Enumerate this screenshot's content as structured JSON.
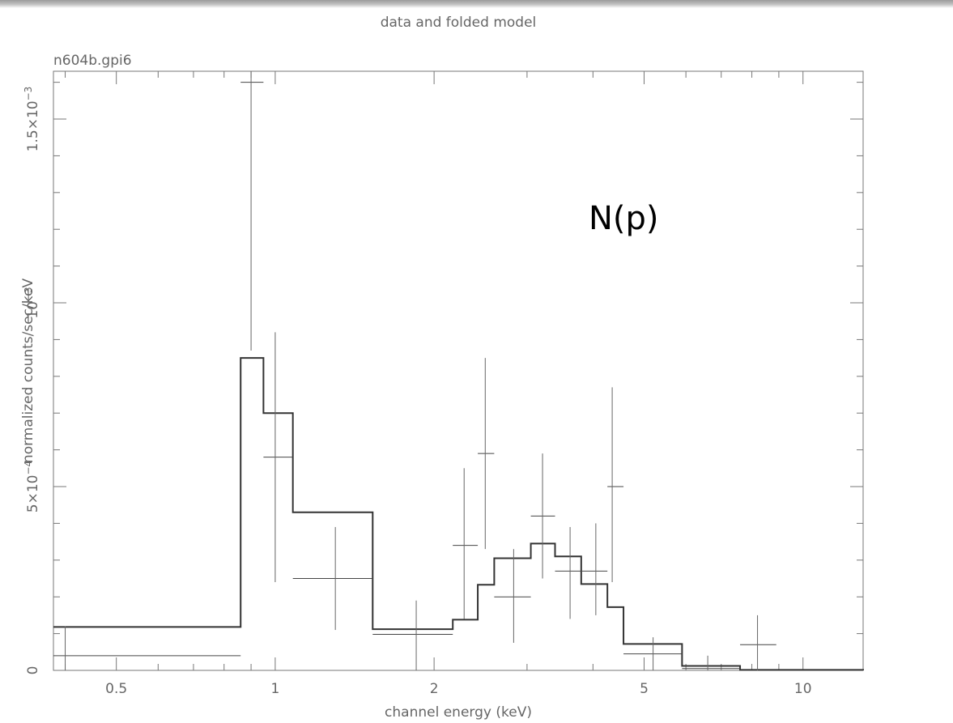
{
  "plot_title": "data and folded model",
  "plot_subtitle": "n604b.gpi6",
  "annotation": "N(p)",
  "chart_data": {
    "type": "line",
    "title": "data and folded model",
    "subtitle": "n604b.gpi6",
    "xlabel": "channel energy (keV)",
    "ylabel": "normalized counts/sec/keV",
    "x_scale": "log",
    "xlim": [
      0.38,
      13.0
    ],
    "ylim": [
      0,
      0.00163
    ],
    "x_ticks": [
      {
        "value": 0.5,
        "label": "0.5"
      },
      {
        "value": 1,
        "label": "1"
      },
      {
        "value": 2,
        "label": "2"
      },
      {
        "value": 5,
        "label": "5"
      },
      {
        "value": 10,
        "label": "10"
      }
    ],
    "y_ticks": [
      {
        "value": 0,
        "label": "0",
        "exp": ""
      },
      {
        "value": 0.0005,
        "label": "5×10",
        "exp": "−4"
      },
      {
        "value": 0.001,
        "label": "10",
        "exp": "−3"
      },
      {
        "value": 0.0015,
        "label": "1.5×10",
        "exp": "−3"
      }
    ],
    "grid": false,
    "legend": "none",
    "annotation": "N(p)",
    "model_step": [
      {
        "x0": 0.38,
        "x1": 0.86,
        "y": 0.000118
      },
      {
        "x0": 0.86,
        "x1": 0.95,
        "y": 0.00085
      },
      {
        "x0": 0.95,
        "x1": 1.08,
        "y": 0.0007
      },
      {
        "x0": 1.08,
        "x1": 1.53,
        "y": 0.00043
      },
      {
        "x0": 1.53,
        "x1": 2.17,
        "y": 0.000112
      },
      {
        "x0": 2.17,
        "x1": 2.42,
        "y": 0.000138
      },
      {
        "x0": 2.42,
        "x1": 2.6,
        "y": 0.000233
      },
      {
        "x0": 2.6,
        "x1": 3.05,
        "y": 0.000305
      },
      {
        "x0": 3.05,
        "x1": 3.39,
        "y": 0.000345
      },
      {
        "x0": 3.39,
        "x1": 3.8,
        "y": 0.00031
      },
      {
        "x0": 3.8,
        "x1": 4.26,
        "y": 0.000235
      },
      {
        "x0": 4.26,
        "x1": 4.57,
        "y": 0.000172
      },
      {
        "x0": 4.57,
        "x1": 5.9,
        "y": 7.2e-05
      },
      {
        "x0": 5.9,
        "x1": 7.6,
        "y": 1.2e-05
      },
      {
        "x0": 7.6,
        "x1": 13.0,
        "y": 1.5e-06
      }
    ],
    "data_points": [
      {
        "x": 0.4,
        "xlo": 0.38,
        "xhi": 0.86,
        "y": 4e-05,
        "ylo": 0.0,
        "yhi": 0.00012
      },
      {
        "x": 0.9,
        "xlo": 0.86,
        "xhi": 0.95,
        "y": 0.0016,
        "ylo": 0.00087,
        "yhi": 0.00163
      },
      {
        "x": 1.0,
        "xlo": 0.95,
        "xhi": 1.08,
        "y": 0.00058,
        "ylo": 0.00024,
        "yhi": 0.00092
      },
      {
        "x": 1.3,
        "xlo": 1.08,
        "xhi": 1.53,
        "y": 0.00025,
        "ylo": 0.00011,
        "yhi": 0.00039
      },
      {
        "x": 1.85,
        "xlo": 1.53,
        "xhi": 2.17,
        "y": 9.8e-05,
        "ylo": 0.0,
        "yhi": 0.00019
      },
      {
        "x": 2.28,
        "xlo": 2.17,
        "xhi": 2.42,
        "y": 0.00034,
        "ylo": 0.00014,
        "yhi": 0.00055
      },
      {
        "x": 2.5,
        "xlo": 2.42,
        "xhi": 2.6,
        "y": 0.00059,
        "ylo": 0.00033,
        "yhi": 0.00085
      },
      {
        "x": 2.83,
        "xlo": 2.6,
        "xhi": 3.05,
        "y": 0.0002,
        "ylo": 7.5e-05,
        "yhi": 0.00033
      },
      {
        "x": 3.21,
        "xlo": 3.05,
        "xhi": 3.39,
        "y": 0.00042,
        "ylo": 0.00025,
        "yhi": 0.00059
      },
      {
        "x": 3.62,
        "xlo": 3.39,
        "xhi": 3.8,
        "y": 0.00027,
        "ylo": 0.00014,
        "yhi": 0.00039
      },
      {
        "x": 4.05,
        "xlo": 3.8,
        "xhi": 4.26,
        "y": 0.00027,
        "ylo": 0.00015,
        "yhi": 0.0004
      },
      {
        "x": 4.35,
        "xlo": 4.26,
        "xhi": 4.57,
        "y": 0.0005,
        "ylo": 0.00024,
        "yhi": 0.00077
      },
      {
        "x": 5.2,
        "xlo": 4.57,
        "xhi": 5.9,
        "y": 4.5e-05,
        "ylo": 0.0,
        "yhi": 9e-05
      },
      {
        "x": 6.6,
        "xlo": 5.9,
        "xhi": 7.6,
        "y": 5e-06,
        "ylo": 0.0,
        "yhi": 4e-05
      },
      {
        "x": 8.2,
        "xlo": 7.6,
        "xhi": 8.9,
        "y": 7e-05,
        "ylo": 0.0,
        "yhi": 0.00015
      }
    ]
  }
}
